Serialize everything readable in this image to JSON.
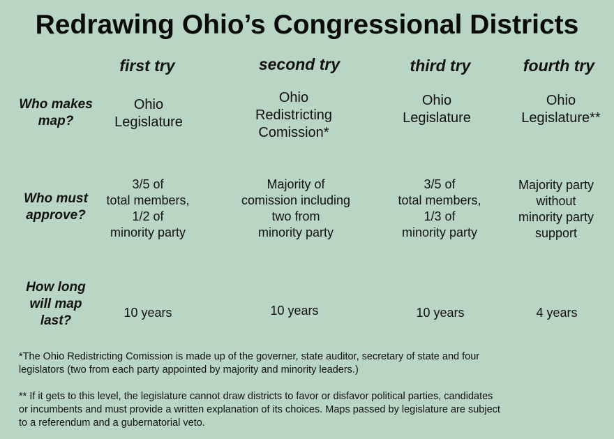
{
  "title": "Redrawing Ohio’s Congressional Districts",
  "columns": [
    "first try",
    "second try",
    "third try",
    "fourth try"
  ],
  "rows": [
    {
      "label_lines": [
        "Who makes",
        "map?"
      ],
      "cells": [
        [
          "Ohio",
          "Legislature"
        ],
        [
          "Ohio",
          "Redistricting",
          "Comission*"
        ],
        [
          "Ohio",
          "Legislature"
        ],
        [
          "Ohio",
          "Legislature**"
        ]
      ]
    },
    {
      "label_lines": [
        "Who must",
        "approve?"
      ],
      "cells": [
        [
          "3/5 of",
          "total members,",
          "1/2 of",
          "minority party"
        ],
        [
          "Majority of",
          "comission including",
          "two from",
          "minority party"
        ],
        [
          "3/5 of",
          "total members,",
          "1/3 of",
          "minority party"
        ],
        [
          "Majority party",
          "without",
          "minority party",
          "support"
        ]
      ]
    },
    {
      "label_lines": [
        "How long",
        "will map",
        "last?"
      ],
      "cells": [
        [
          "10 years"
        ],
        [
          "10 years"
        ],
        [
          "10 years"
        ],
        [
          "4 years"
        ]
      ]
    }
  ],
  "footnotes": [
    [
      "*The Ohio Redistricting Comission is made up of the governer, state auditor, secretary of state and four",
      " legislators (two from each party appointed by majority and minority leaders.)"
    ],
    [
      "** If it gets to this level, the legislature cannot draw districts to favor or disfavor political parties, candidates",
      "or incumbents and must provide a written explanation of its choices. Maps passed by legislature are subject",
      "to a referendum and a gubernatorial veto."
    ]
  ]
}
